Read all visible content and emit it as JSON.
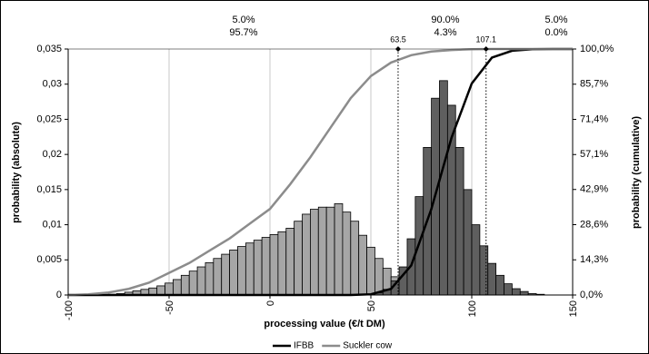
{
  "chart_data": {
    "type": "histogram",
    "xlabel": "processing value (€/t DM)",
    "ylabel": "probability (absolute)",
    "y2label": "probability (cumulative)",
    "xlim": [
      -100,
      150
    ],
    "xticks": [
      -100,
      -50,
      0,
      50,
      100,
      150
    ],
    "ylim": [
      0,
      0.035
    ],
    "yticks": [
      0,
      {
        "value": 0.005,
        "label": "0,005"
      },
      {
        "value": 0.01,
        "label": "0,01"
      },
      {
        "value": 0.015,
        "label": "0,015"
      },
      {
        "value": 0.02,
        "label": "0,02"
      },
      {
        "value": 0.025,
        "label": "0,025"
      },
      {
        "value": 0.03,
        "label": "0,03"
      },
      {
        "value": 0.035,
        "label": "0,035"
      }
    ],
    "y2lim": [
      0,
      100
    ],
    "y2ticks": [
      {
        "value": 0,
        "label": "0,0%"
      },
      {
        "value": 14.3,
        "label": "14,3%"
      },
      {
        "value": 28.6,
        "label": "28,6%"
      },
      {
        "value": 42.9,
        "label": "42,9%"
      },
      {
        "value": 57.1,
        "label": "57,1%"
      },
      {
        "value": 71.4,
        "label": "71,4%"
      },
      {
        "value": 85.7,
        "label": "85,7%"
      },
      {
        "value": 100,
        "label": "100,0%"
      }
    ],
    "grid": true,
    "legend": "bottom",
    "bins": [
      -80,
      -76,
      -72,
      -68,
      -64,
      -60,
      -56,
      -52,
      -48,
      -44,
      -40,
      -36,
      -32,
      -28,
      -24,
      -20,
      -16,
      -12,
      -8,
      -4,
      0,
      4,
      8,
      12,
      16,
      20,
      24,
      28,
      32,
      36,
      40,
      44,
      48,
      52,
      56,
      60,
      64,
      68,
      72,
      76,
      80,
      84,
      88,
      92,
      96,
      100,
      104,
      108,
      112,
      116,
      120,
      124,
      128,
      132,
      136,
      140
    ],
    "series": [
      {
        "color": "#a6a6a6",
        "values": [
          0.0001,
          0.0002,
          0.0004,
          0.0006,
          0.0008,
          0.001,
          0.0013,
          0.0017,
          0.0022,
          0.0028,
          0.0034,
          0.004,
          0.0046,
          0.0052,
          0.0058,
          0.0064,
          0.0069,
          0.0074,
          0.0078,
          0.0082,
          0.0086,
          0.009,
          0.0095,
          0.0105,
          0.0115,
          0.0122,
          0.0125,
          0.0125,
          0.013,
          0.0118,
          0.0105,
          0.0085,
          0.0068,
          0.0052,
          0.0038,
          0.0026,
          0.0017,
          0.001,
          0.0006,
          0.0003,
          0.0002,
          0.0001,
          0,
          0,
          0,
          0,
          0,
          0,
          0,
          0,
          0,
          0,
          0,
          0,
          0
        ]
      },
      {
        "color": "#5f5f5f",
        "values": [
          0,
          0,
          0,
          0,
          0,
          0,
          0,
          0,
          0,
          0,
          0,
          0,
          0,
          0,
          0,
          0,
          0,
          0,
          0,
          0,
          0,
          0,
          0,
          0,
          0,
          0,
          0,
          0,
          0,
          0,
          0,
          0,
          0.0001,
          0.0003,
          0.0008,
          0.002,
          0.004,
          0.008,
          0.014,
          0.021,
          0.028,
          0.0305,
          0.027,
          0.021,
          0.015,
          0.01,
          0.007,
          0.0045,
          0.0028,
          0.0016,
          0.0009,
          0.0005,
          0.0002,
          0.0001,
          0
        ]
      }
    ],
    "lines": [
      {
        "name": "IFBB",
        "color": "#000000",
        "axis": "y2",
        "x": [
          -100,
          -90,
          -80,
          -70,
          -60,
          -50,
          -40,
          -30,
          -20,
          -10,
          0,
          10,
          20,
          30,
          40,
          50,
          60,
          70,
          80,
          90,
          100,
          110,
          120,
          130,
          140,
          150
        ],
        "values": [
          0,
          0,
          0,
          0,
          0,
          0,
          0,
          0,
          0,
          0,
          0,
          0,
          0,
          0,
          0,
          0.3,
          2.5,
          12,
          35,
          64,
          86,
          96.5,
          99.3,
          99.9,
          100,
          100
        ]
      },
      {
        "name": "Suckler cow",
        "color": "#8c8c8c",
        "axis": "y2",
        "x": [
          -100,
          -90,
          -80,
          -70,
          -60,
          -50,
          -40,
          -30,
          -20,
          -10,
          0,
          10,
          20,
          30,
          40,
          50,
          60,
          70,
          80,
          90,
          100,
          110,
          120,
          130,
          140,
          150
        ],
        "values": [
          0,
          0.3,
          1,
          2.5,
          5,
          9,
          13,
          18,
          23,
          29,
          35,
          45,
          56,
          68,
          80,
          89,
          94.5,
          97.5,
          99,
          99.6,
          99.9,
          100,
          100,
          100,
          100,
          100
        ]
      }
    ],
    "vlines": [
      63.5,
      107.1
    ],
    "annotations": [
      [
        "5.0%",
        "95.7%"
      ],
      [
        "90.0%",
        "4.3%"
      ],
      [
        "5.0%",
        "0.0%"
      ]
    ]
  }
}
